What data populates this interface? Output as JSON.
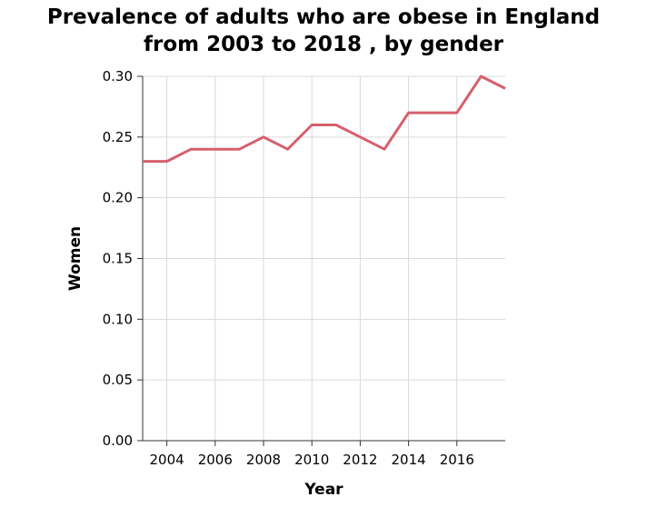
{
  "chart_data": {
    "type": "line",
    "title_line1": "Prevalence of adults who are obese in England",
    "title_line2": "from 2003 to 2018 , by gender",
    "xlabel": "Year",
    "ylabel": "Women",
    "xlim": [
      2003,
      2018
    ],
    "ylim": [
      0,
      0.3
    ],
    "x_ticks": [
      2004,
      2006,
      2008,
      2010,
      2012,
      2014,
      2016
    ],
    "y_ticks": [
      "0.00",
      "0.05",
      "0.10",
      "0.15",
      "0.20",
      "0.25",
      "0.30"
    ],
    "grid": true,
    "line_color": "#d6606d",
    "series": [
      {
        "x": [
          2003,
          2004,
          2005,
          2006,
          2007,
          2008,
          2009,
          2010,
          2011,
          2012,
          2013,
          2014,
          2015,
          2016,
          2017,
          2018
        ],
        "values": [
          0.23,
          0.23,
          0.24,
          0.24,
          0.24,
          0.25,
          0.24,
          0.26,
          0.26,
          0.25,
          0.24,
          0.27,
          0.27,
          0.27,
          0.3,
          0.29
        ]
      }
    ]
  }
}
